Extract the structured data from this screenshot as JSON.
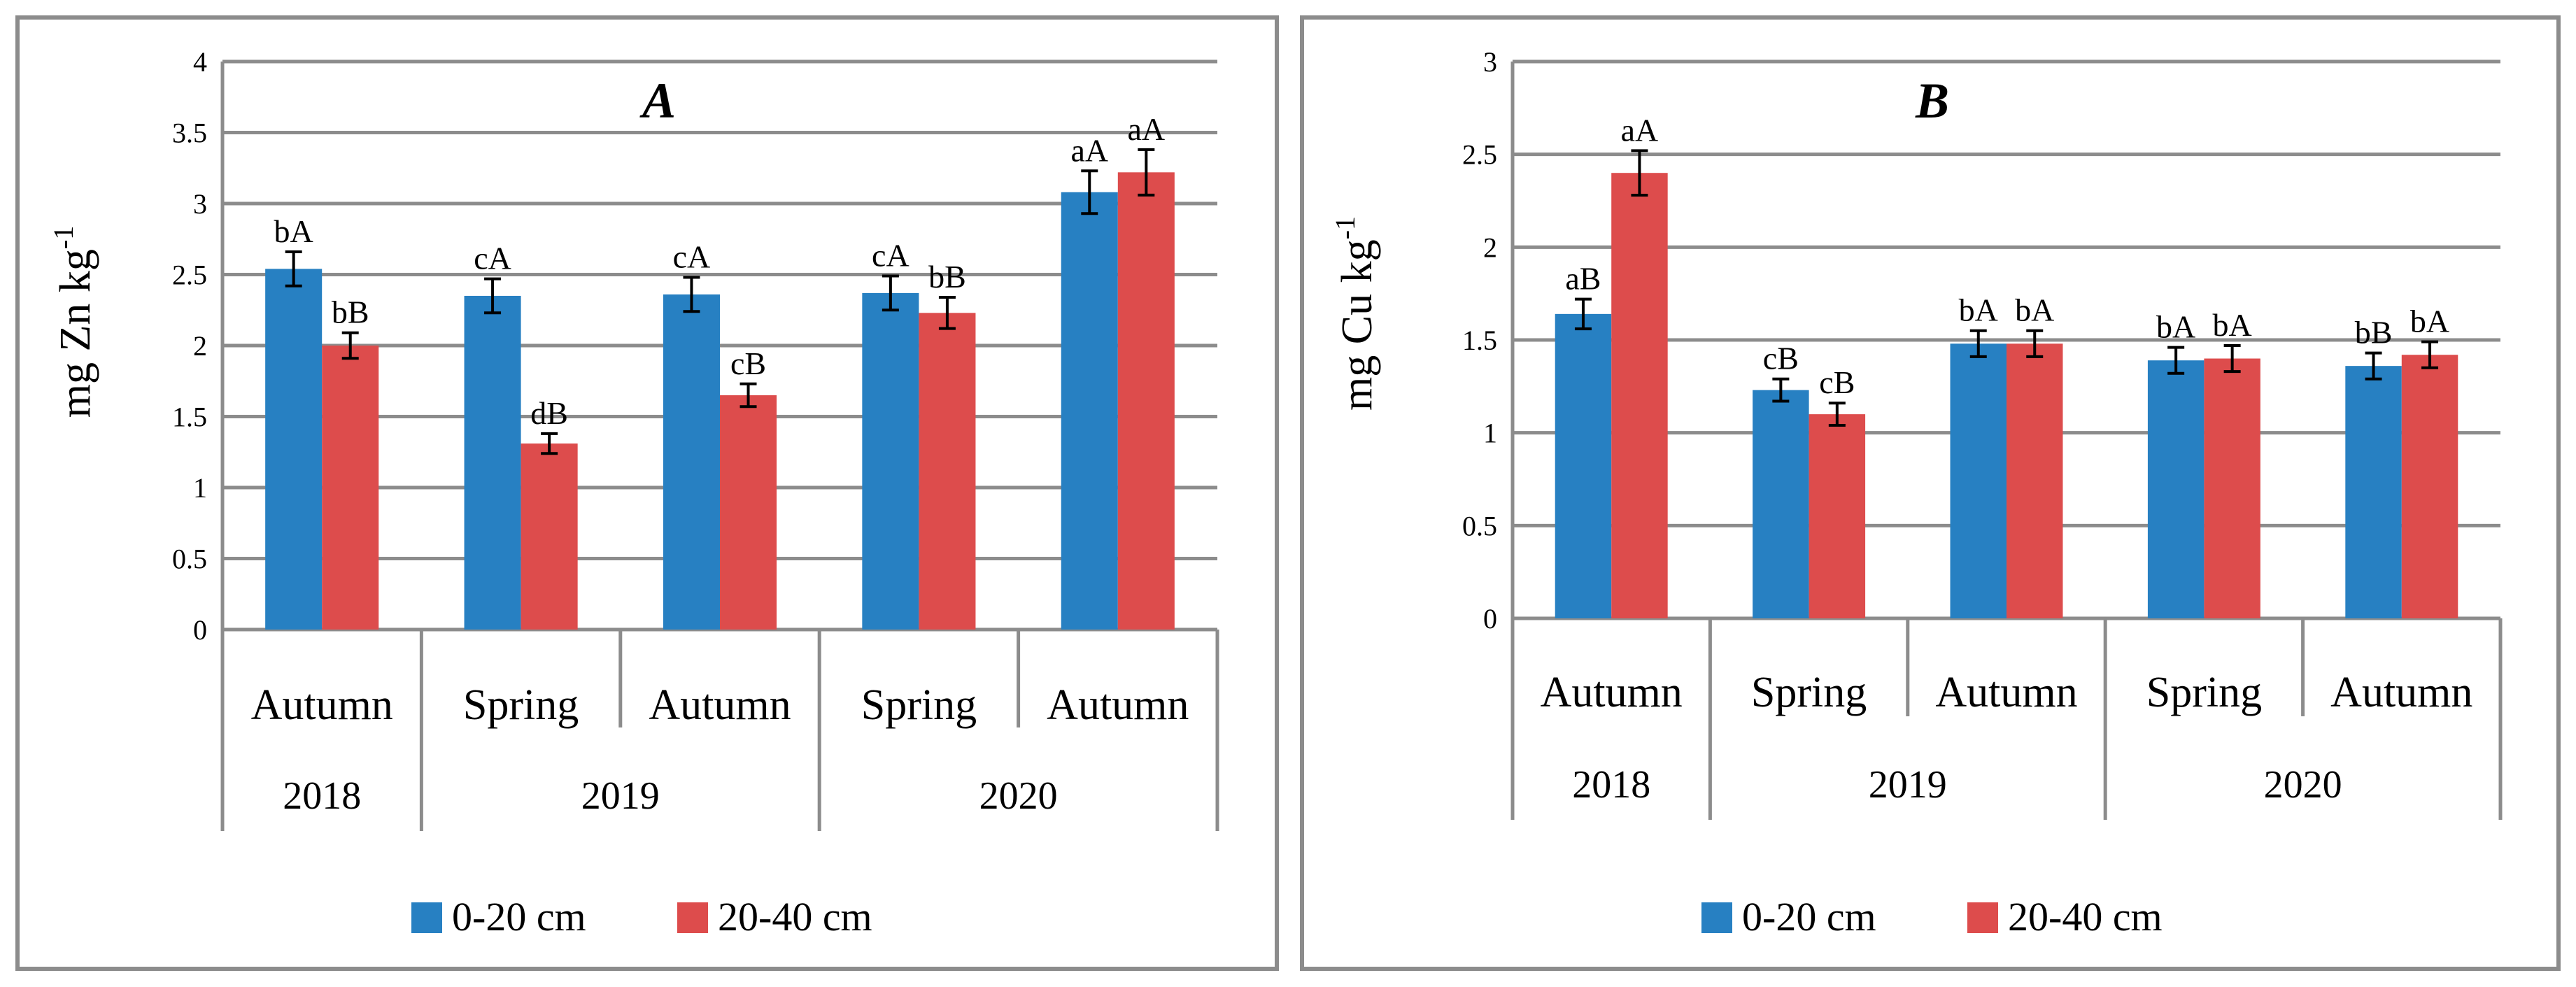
{
  "legend": [
    {
      "label": "0-20 cm",
      "color": "#2780c2"
    },
    {
      "label": "20-40 cm",
      "color": "#dd4c4c"
    }
  ],
  "chart_data": [
    {
      "type": "bar",
      "title": "A",
      "ylabel_main": "mg Zn kg",
      "ylabel_sup": "-1",
      "ylim": [
        0,
        4
      ],
      "yticks": [
        "0",
        "0.5",
        "1",
        "1.5",
        "2",
        "2.5",
        "3",
        "3.5",
        "4"
      ],
      "grid": true,
      "legend_position": "bottom",
      "categories": [
        "Autumn",
        "Spring",
        "Autumn",
        "Spring",
        "Autumn"
      ],
      "years": [
        {
          "label": "2018",
          "span": 1
        },
        {
          "label": "2019",
          "span": 2
        },
        {
          "label": "2020",
          "span": 2
        }
      ],
      "series": [
        {
          "name": "0-20 cm",
          "values": [
            2.54,
            2.35,
            2.36,
            2.37,
            3.08
          ],
          "errors": [
            0.12,
            0.12,
            0.12,
            0.12,
            0.15
          ],
          "labels": [
            "bA",
            "cA",
            "cA",
            "cA",
            "aA"
          ]
        },
        {
          "name": "20-40 cm",
          "values": [
            2.0,
            1.31,
            1.65,
            2.23,
            3.22
          ],
          "errors": [
            0.09,
            0.07,
            0.08,
            0.11,
            0.16
          ],
          "labels": [
            "bB",
            "dB",
            "cB",
            "bB",
            "aA"
          ]
        }
      ]
    },
    {
      "type": "bar",
      "title": "B",
      "ylabel_main": "mg Cu kg",
      "ylabel_sup": "-1",
      "ylim": [
        0,
        3
      ],
      "yticks": [
        "0",
        "0.5",
        "1",
        "1.5",
        "2",
        "2.5",
        "3"
      ],
      "grid": true,
      "legend_position": "bottom",
      "categories": [
        "Autumn",
        "Spring",
        "Autumn",
        "Spring",
        "Autumn"
      ],
      "years": [
        {
          "label": "2018",
          "span": 1
        },
        {
          "label": "2019",
          "span": 2
        },
        {
          "label": "2020",
          "span": 2
        }
      ],
      "series": [
        {
          "name": "0-20 cm",
          "values": [
            1.64,
            1.23,
            1.48,
            1.39,
            1.36
          ],
          "errors": [
            0.08,
            0.06,
            0.07,
            0.07,
            0.07
          ],
          "labels": [
            "aB",
            "cB",
            "bA",
            "bA",
            "bB"
          ]
        },
        {
          "name": "20-40 cm",
          "values": [
            2.4,
            1.1,
            1.48,
            1.4,
            1.42
          ],
          "errors": [
            0.12,
            0.06,
            0.07,
            0.07,
            0.07
          ],
          "labels": [
            "aA",
            "cB",
            "bA",
            "bA",
            "bA"
          ]
        }
      ]
    }
  ]
}
